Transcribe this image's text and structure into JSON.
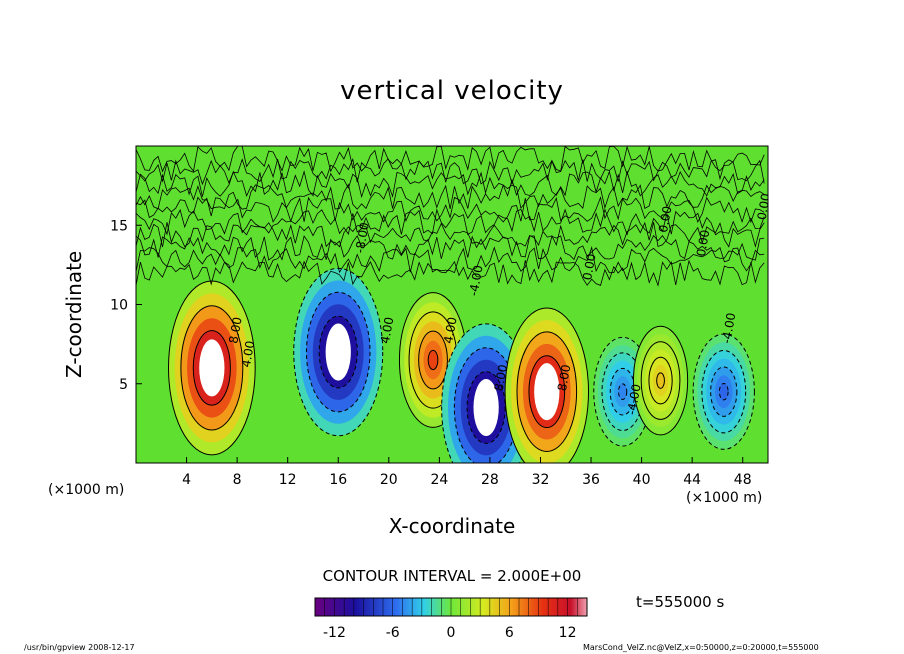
{
  "chart_data": {
    "type": "heatmap",
    "title": "vertical velocity",
    "xlabel": "X-coordinate",
    "ylabel": "Z-coordinate",
    "x_unit_label": "(×1000 m)",
    "x_ticks": [
      4,
      8,
      12,
      16,
      20,
      24,
      28,
      32,
      36,
      40,
      44,
      48
    ],
    "y_ticks": [
      5,
      10,
      15
    ],
    "xlim": [
      0,
      50
    ],
    "ylim": [
      0,
      20
    ],
    "colorbar": {
      "ticks": [
        -12,
        -6,
        0,
        6,
        12
      ],
      "range": [
        -14,
        14
      ]
    },
    "contour_interval": "CONTOUR INTERVAL = 2.000E+00",
    "contour_labels": [
      {
        "x": 8,
        "y": 7.5,
        "text": "8.00"
      },
      {
        "x": 9,
        "y": 6.0,
        "text": "4.00"
      },
      {
        "x": 18,
        "y": 13.2,
        "text": "-8.00"
      },
      {
        "x": 20,
        "y": 7.5,
        "text": "4.00"
      },
      {
        "x": 25,
        "y": 7.5,
        "text": "4.00"
      },
      {
        "x": 27,
        "y": 10.5,
        "text": "-4.00"
      },
      {
        "x": 29,
        "y": 4.5,
        "text": "8.00"
      },
      {
        "x": 34,
        "y": 4.5,
        "text": "8.00"
      },
      {
        "x": 36,
        "y": 11.5,
        "text": "0.00"
      },
      {
        "x": 39.5,
        "y": 3.0,
        "text": "-4.00"
      },
      {
        "x": 42,
        "y": 14.5,
        "text": "0.00"
      },
      {
        "x": 45,
        "y": 13.0,
        "text": "0.00"
      },
      {
        "x": 47,
        "y": 7.5,
        "text": "-4.00"
      },
      {
        "x": 49.8,
        "y": 15.3,
        "text": "0.00"
      }
    ],
    "features": [
      {
        "kind": "updraft",
        "x": 6,
        "y": 6,
        "peak": 15
      },
      {
        "kind": "downdraft",
        "x": 16,
        "y": 7,
        "peak": -14
      },
      {
        "kind": "updraft",
        "x": 23.5,
        "y": 6.5,
        "peak": 9
      },
      {
        "kind": "downdraft",
        "x": 27.7,
        "y": 3.5,
        "peak": -14
      },
      {
        "kind": "updraft",
        "x": 32.5,
        "y": 4.5,
        "peak": 14
      },
      {
        "kind": "downdraft",
        "x": 38.5,
        "y": 4.5,
        "peak": -5
      },
      {
        "kind": "updraft",
        "x": 41.5,
        "y": 5.2,
        "peak": 5
      },
      {
        "kind": "downdraft",
        "x": 46.5,
        "y": 4.5,
        "peak": -6
      }
    ]
  },
  "time_label": "t=555000 s",
  "footer": {
    "left": "/usr/bin/gpview   2008-12-17",
    "right": "MarsCond_VelZ.nc@VelZ,x=0:50000,z=0:20000,t=555000"
  }
}
